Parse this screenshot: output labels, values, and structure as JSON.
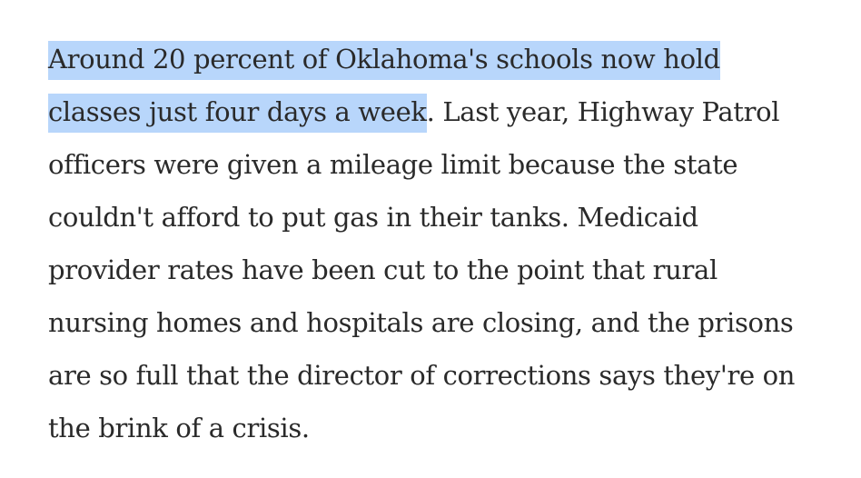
{
  "article": {
    "lines": [
      {
        "highlighted": "Around 20 percent of Oklahoma's schools now hold",
        "text": ""
      },
      {
        "highlighted": "classes just four days a week",
        "text": ". Last year, Highway Patrol"
      },
      {
        "highlighted": "",
        "text": "officers were given a mileage limit because the state"
      },
      {
        "highlighted": "",
        "text": "couldn't afford to put gas in their tanks. Medicaid"
      },
      {
        "highlighted": "",
        "text": "provider rates have been cut to the point that rural"
      },
      {
        "highlighted": "",
        "text": "nursing homes and hospitals are closing, and the prisons"
      },
      {
        "highlighted": "",
        "text": "are so full that the director of corrections says they're on"
      },
      {
        "highlighted": "",
        "text": "the brink of a crisis."
      }
    ]
  },
  "colors": {
    "text": "#2a2a2a",
    "selection": "#b8d6fb",
    "background": "#ffffff"
  }
}
